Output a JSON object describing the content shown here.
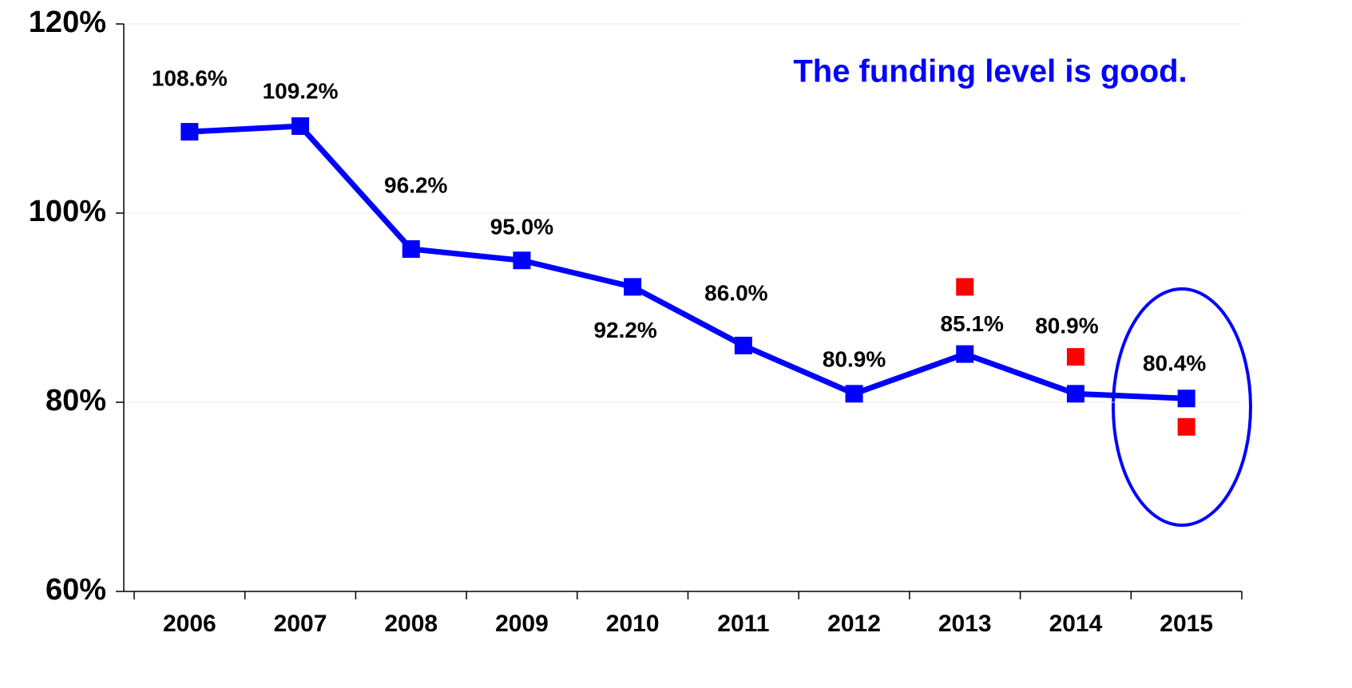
{
  "chart_data": {
    "type": "line",
    "annotation": "The funding level is good.",
    "categories": [
      "2006",
      "2007",
      "2008",
      "2009",
      "2010",
      "2011",
      "2012",
      "2013",
      "2014",
      "2015"
    ],
    "series": [
      {
        "color": "#0000ff",
        "values": [
          108.6,
          109.2,
          96.2,
          95.0,
          92.2,
          86.0,
          80.9,
          85.1,
          80.9,
          80.4
        ],
        "value_labels": [
          "108.6%",
          "109.2%",
          "96.2%",
          "95.0%",
          "92.2%",
          "86.0%",
          "80.9%",
          "85.1%",
          "80.9%",
          "80.4%"
        ]
      },
      {
        "color": "#ff0000",
        "line": false,
        "values": [
          null,
          null,
          null,
          null,
          null,
          null,
          null,
          92.2,
          84.8,
          77.4
        ]
      }
    ],
    "ylim": [
      60,
      120
    ],
    "yticks": [
      {
        "value": 60,
        "label": "60%"
      },
      {
        "value": 80,
        "label": "80%"
      },
      {
        "value": 100,
        "label": "100%"
      },
      {
        "value": 120,
        "label": "120%"
      }
    ],
    "grid": true
  }
}
